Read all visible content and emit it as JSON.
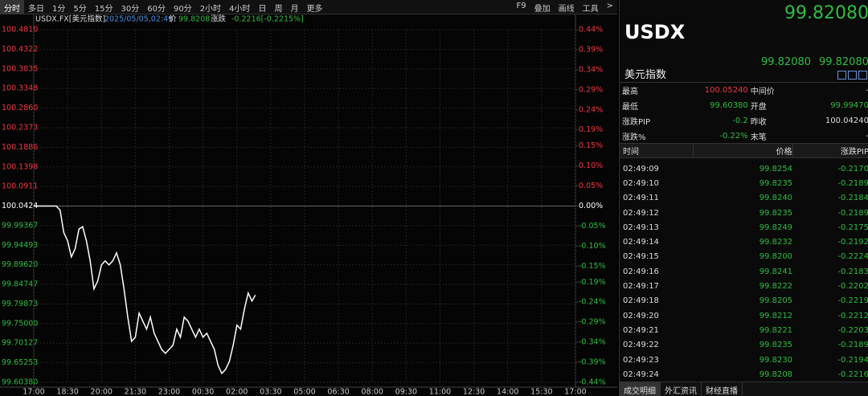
{
  "toolbar": {
    "tabs": [
      "分时",
      "多日",
      "1分",
      "5分",
      "15分",
      "30分",
      "60分",
      "90分",
      "2小时",
      "4小时",
      "日",
      "周",
      "月",
      "更多"
    ],
    "tools": [
      "F9",
      "叠加",
      "画线",
      "工具",
      ">"
    ]
  },
  "chart_data": {
    "type": "line",
    "symbol": "USDX.FX[美元指数]",
    "datetime": "2025/05/05,02:49",
    "price_label": "价",
    "price": "99.8208",
    "change_label": "涨跌",
    "change": "-0.2216[-0.2215%]",
    "ylim": [
      99.6038,
      100.481
    ],
    "yticks": [
      {
        "value": 100.481,
        "label": "100.4810"
      },
      100.4322,
      100.3835,
      100.3348,
      {
        "value": 100.286,
        "label": "100.2860"
      },
      100.2373,
      100.1886,
      100.1398,
      100.0911,
      100.0424,
      99.99367,
      99.94493,
      {
        "value": 99.8962,
        "label": "99.89620"
      },
      99.84747,
      99.79873,
      {
        "value": 99.75,
        "label": "99.75000"
      },
      99.70127,
      99.65253,
      {
        "value": 99.6038,
        "label": "99.60380"
      }
    ],
    "y2lim": [
      -0.44,
      0.44
    ],
    "y2ticks": [
      {
        "value": 0.44,
        "label": "0.44%"
      },
      {
        "value": 0.39,
        "label": "0.39%"
      },
      {
        "value": 0.34,
        "label": "0.34%"
      },
      {
        "value": 0.29,
        "label": "0.29%"
      },
      {
        "value": 0.24,
        "label": "0.24%"
      },
      {
        "value": 0.19,
        "label": "0.19%"
      },
      {
        "value": 0.15,
        "label": "0.15%"
      },
      {
        "value": 0.1,
        "label": "0.10%"
      },
      {
        "value": 0.05,
        "label": "0.05%"
      },
      {
        "value": 0,
        "label": "0.00%"
      },
      {
        "value": -0.05,
        "label": "-0.05%"
      },
      {
        "value": -0.1,
        "label": "-0.10%"
      },
      {
        "value": -0.15,
        "label": "-0.15%"
      },
      {
        "value": -0.19,
        "label": "-0.19%"
      },
      {
        "value": -0.24,
        "label": "-0.24%"
      },
      {
        "value": -0.29,
        "label": "-0.29%"
      },
      {
        "value": -0.34,
        "label": "-0.34%"
      },
      {
        "value": -0.39,
        "label": "-0.39%"
      },
      {
        "value": -0.44,
        "label": "-0.44%"
      }
    ],
    "xticks": [
      "17:00",
      "18:30",
      "20:00",
      "21:30",
      "23:00",
      "00:30",
      "02:00",
      "03:30",
      "05:00",
      "06:30",
      "08:00",
      "09:30",
      "11:00",
      "12:30",
      "14:00",
      "15:30",
      "17:00"
    ],
    "grid": true,
    "series": [
      {
        "color": "#ffffff",
        "x": [
          "17:00",
          "17:10",
          "17:20",
          "17:30",
          "17:40",
          "17:50",
          "18:00",
          "18:10",
          "18:20",
          "18:30",
          "18:40",
          "18:50",
          "19:00",
          "19:10",
          "19:20",
          "19:30",
          "19:40",
          "19:50",
          "20:00",
          "20:10",
          "20:20",
          "20:30",
          "20:40",
          "20:50",
          "21:00",
          "21:10",
          "21:20",
          "21:30",
          "21:40",
          "21:50",
          "22:00",
          "22:10",
          "22:20",
          "22:30",
          "22:40",
          "22:50",
          "23:00",
          "23:10",
          "23:20",
          "23:30",
          "23:40",
          "23:50",
          "00:00",
          "00:10",
          "00:20",
          "00:30",
          "00:40",
          "00:50",
          "01:00",
          "01:10",
          "01:20",
          "01:30",
          "01:40",
          "01:50",
          "02:00",
          "02:10",
          "02:20",
          "02:30",
          "02:40",
          "02:49"
        ],
        "values": [
          100.0424,
          100.0424,
          100.0424,
          100.0424,
          100.0424,
          100.0424,
          100.0424,
          100.032,
          99.976,
          99.956,
          99.916,
          99.936,
          99.985,
          99.991,
          99.956,
          99.906,
          99.836,
          99.856,
          99.896,
          99.906,
          99.896,
          99.906,
          99.926,
          99.896,
          99.836,
          99.766,
          99.706,
          99.716,
          99.776,
          99.756,
          99.736,
          99.766,
          99.726,
          99.706,
          99.686,
          99.676,
          99.686,
          99.696,
          99.736,
          99.716,
          99.766,
          99.756,
          99.736,
          99.716,
          99.736,
          99.716,
          99.726,
          99.706,
          99.686,
          99.646,
          99.626,
          99.636,
          99.656,
          99.696,
          99.746,
          99.736,
          99.786,
          99.826,
          99.806,
          99.8208
        ]
      }
    ]
  },
  "quote": {
    "last": "99.82080",
    "symbol": "USDX",
    "bid": "99.82080",
    "ask": "99.82080",
    "name": "美元指数",
    "rows": [
      [
        "最高",
        "100.05240",
        "中间价",
        "-"
      ],
      [
        "最低",
        "99.60380",
        "开盘",
        "99.99470"
      ],
      [
        "涨跌PIP",
        "-0.2",
        "昨收",
        "100.04240"
      ],
      [
        "涨跌%",
        "-0.22%",
        "末笔",
        "-"
      ]
    ]
  },
  "trades": {
    "header": [
      "时间",
      "价格",
      "涨跌PIP"
    ],
    "rows": [
      [
        "02:49:09",
        "99.8254",
        "-0.2170"
      ],
      [
        "02:49:10",
        "99.8235",
        "-0.2189"
      ],
      [
        "02:49:11",
        "99.8240",
        "-0.2184"
      ],
      [
        "02:49:12",
        "99.8235",
        "-0.2189"
      ],
      [
        "02:49:13",
        "99.8249",
        "-0.2175"
      ],
      [
        "02:49:14",
        "99.8232",
        "-0.2192"
      ],
      [
        "02:49:15",
        "99.8200",
        "-0.2224"
      ],
      [
        "02:49:16",
        "99.8241",
        "-0.2183"
      ],
      [
        "02:49:17",
        "99.8222",
        "-0.2202"
      ],
      [
        "02:49:18",
        "99.8205",
        "-0.2219"
      ],
      [
        "02:49:20",
        "99.8212",
        "-0.2212"
      ],
      [
        "02:49:21",
        "99.8221",
        "-0.2203"
      ],
      [
        "02:49:22",
        "99.8235",
        "-0.2189"
      ],
      [
        "02:49:23",
        "99.8230",
        "-0.2194"
      ],
      [
        "02:49:24",
        "99.8208",
        "-0.2216"
      ]
    ]
  },
  "bottom_tabs": [
    "成交明细",
    "外汇资讯",
    "财经直播"
  ]
}
